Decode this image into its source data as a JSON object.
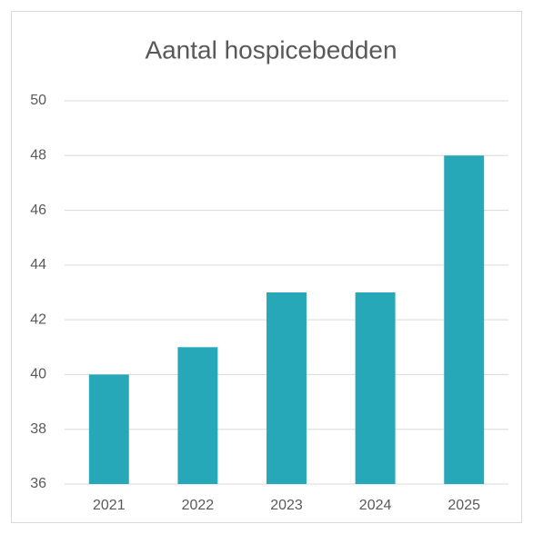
{
  "chart_data": {
    "type": "bar",
    "title": "Aantal hospicebedden",
    "categories": [
      "2021",
      "2022",
      "2023",
      "2024",
      "2025"
    ],
    "values": [
      40,
      41,
      43,
      43,
      48
    ],
    "color": "#26a8b8",
    "ylim": [
      36,
      50
    ],
    "yticks": [
      36,
      38,
      40,
      42,
      44,
      46,
      48,
      50
    ],
    "grid": true
  }
}
